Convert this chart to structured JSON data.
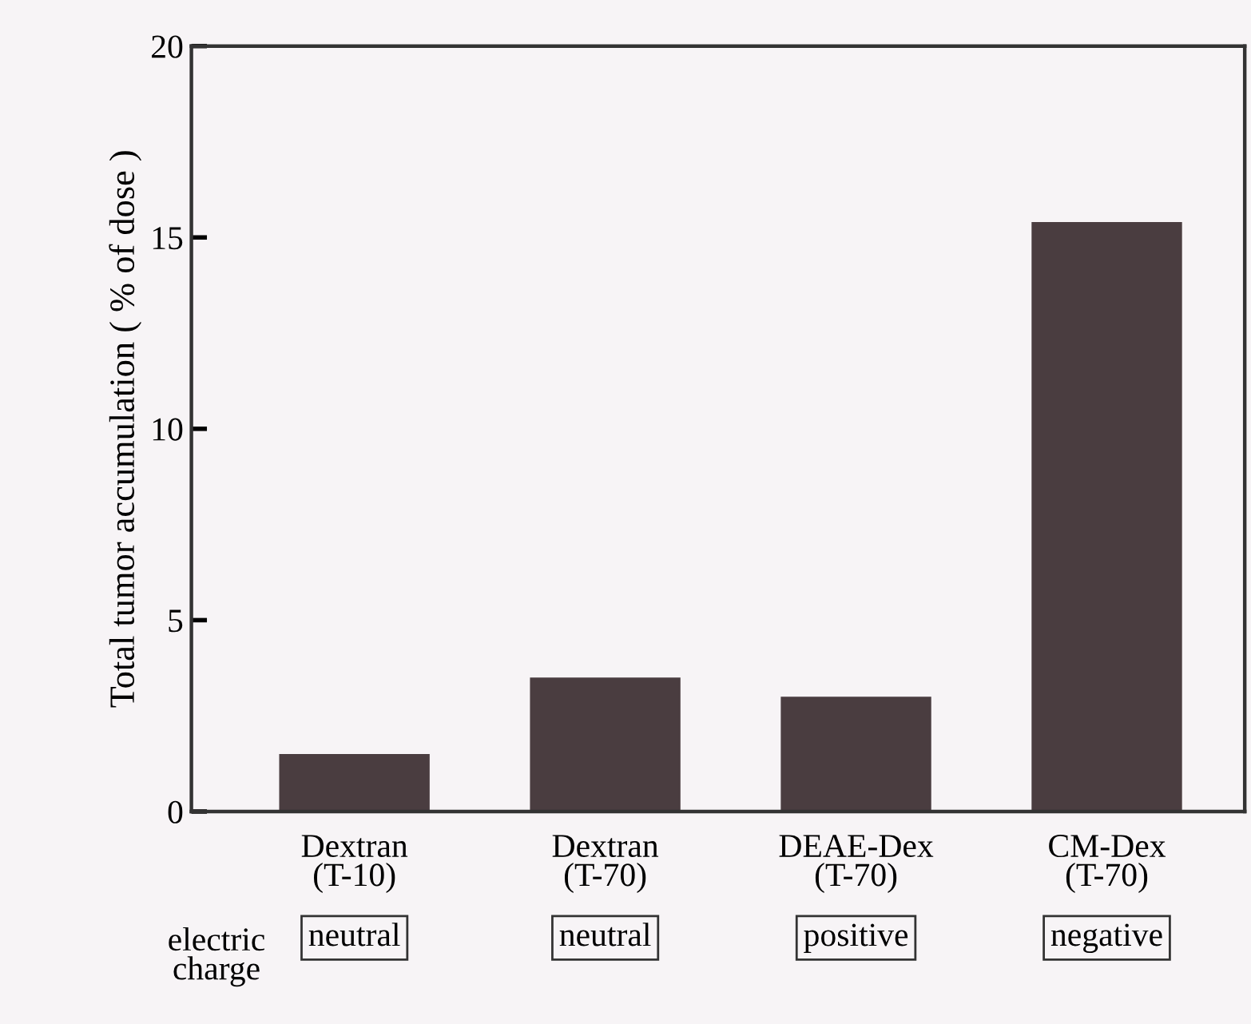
{
  "chart_data": {
    "type": "bar",
    "ylabel": "Total tumor accumulation ( % of dose )",
    "categories": [
      "Dextran\n(T-10)",
      "Dextran\n(T-70)",
      "DEAE-Dex\n(T-70)",
      "CM-Dex\n(T-70)"
    ],
    "values": [
      1.5,
      3.5,
      3.0,
      15.4
    ],
    "color": "#4a3d40",
    "ylim": [
      0,
      20
    ],
    "yticks": [
      0,
      5,
      10,
      15,
      20
    ],
    "grid": false,
    "legend": false,
    "annotations": [
      "electric\ncharge",
      "neutral",
      "neutral",
      "positive",
      "negative"
    ]
  }
}
